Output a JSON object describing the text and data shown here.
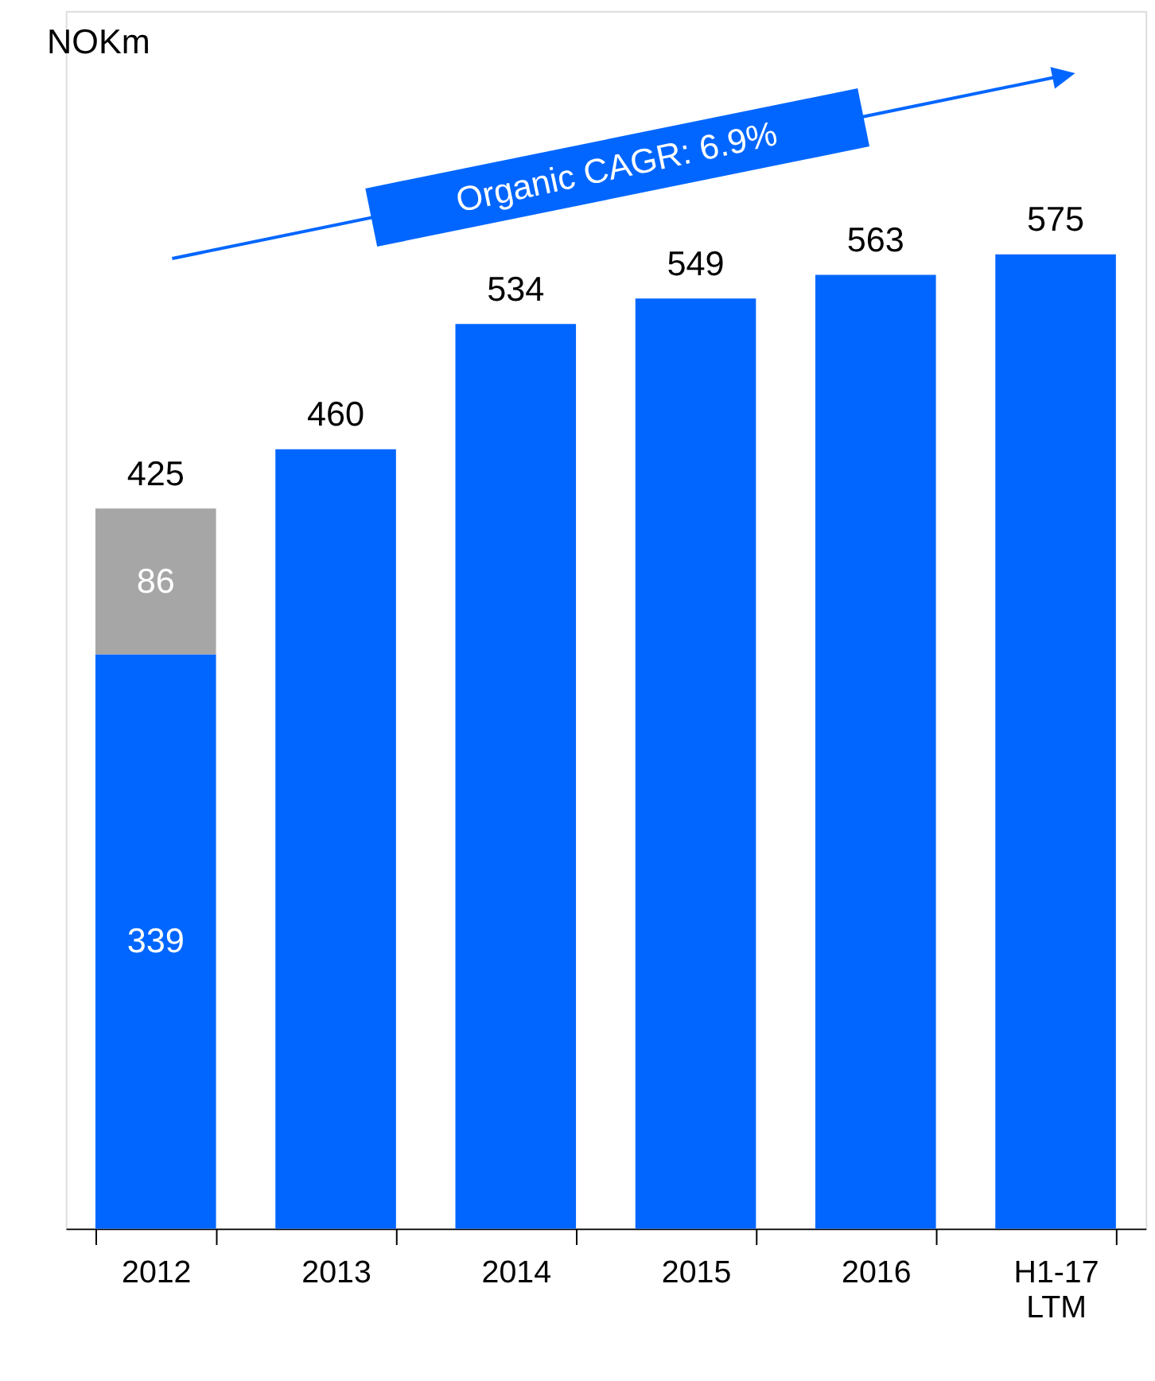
{
  "chart_data": {
    "type": "bar",
    "stacked": true,
    "categories": [
      "2012",
      "2013",
      "2014",
      "2015",
      "2016",
      "H1-17 LTM"
    ],
    "series": [
      {
        "color": "#0066ff",
        "values": [
          339,
          460,
          534,
          549,
          563,
          575
        ],
        "value_labels": [
          "339",
          null,
          null,
          null,
          null,
          null
        ]
      },
      {
        "color": "#a6a6a6",
        "values": [
          86,
          null,
          null,
          null,
          null,
          null
        ],
        "value_labels": [
          "86",
          null,
          null,
          null,
          null,
          null
        ]
      }
    ],
    "totals": [
      "425",
      "460",
      "534",
      "549",
      "563",
      "575"
    ],
    "annotations": [
      "NOKm",
      "Organic CAGR: 6.9%"
    ],
    "tick_labels": "x",
    "grid": false
  }
}
